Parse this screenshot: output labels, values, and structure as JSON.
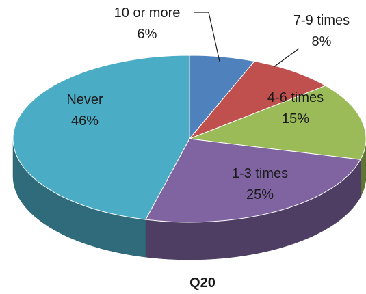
{
  "chart_data": {
    "type": "pie",
    "style": "3d",
    "title": "Q20",
    "slices": [
      {
        "label": "10 or more",
        "value": 6,
        "value_label": "6%",
        "color": "#4F81BD"
      },
      {
        "label": "7-9 times",
        "value": 8,
        "value_label": "8%",
        "color": "#C0504D"
      },
      {
        "label": "4-6 times",
        "value": 15,
        "value_label": "15%",
        "color": "#9BBB59"
      },
      {
        "label": "1-3 times",
        "value": 25,
        "value_label": "25%",
        "color": "#8064A2"
      },
      {
        "label": "Never",
        "value": 46,
        "value_label": "46%",
        "color": "#4BACC6"
      }
    ],
    "legend": "none"
  }
}
